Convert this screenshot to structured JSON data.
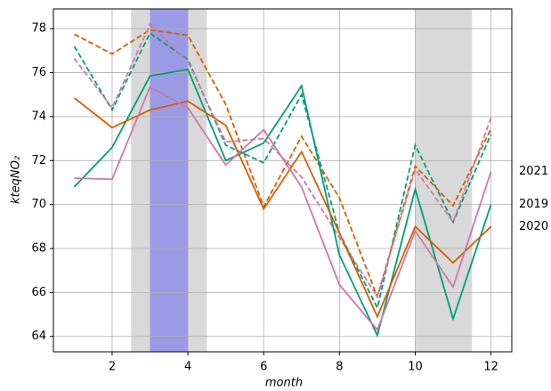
{
  "chart_data": {
    "type": "line",
    "xlabel": "month",
    "ylabel": "kteqNO₂",
    "x": [
      1,
      2,
      3,
      4,
      5,
      6,
      7,
      8,
      9,
      10,
      11,
      12
    ],
    "xlim": [
      0.45,
      12.55
    ],
    "xticks": [
      2,
      4,
      6,
      8,
      10,
      12
    ],
    "ylim": [
      63.3,
      78.9
    ],
    "yticks": [
      64,
      66,
      68,
      70,
      72,
      74,
      76,
      78
    ],
    "grid": true,
    "spans": [
      {
        "xlim": [
          2.5,
          4.5
        ],
        "color": "#d9d9d9"
      },
      {
        "xlim": [
          3,
          4
        ],
        "color": "#9a9ae6"
      },
      {
        "xlim": [
          10,
          11.5
        ],
        "color": "#d9d9d9"
      }
    ],
    "series": [
      {
        "color": "#009e73",
        "style": "dashed",
        "values": [
          77.2,
          74.3,
          77.8,
          76.6,
          72.7,
          71.9,
          75.0,
          68.7,
          65.3,
          72.7,
          69.2,
          73.2
        ]
      },
      {
        "color": "#d55e00",
        "style": "dashed",
        "values": [
          77.75,
          76.85,
          77.95,
          77.7,
          74.55,
          69.9,
          73.1,
          70.3,
          65.8,
          71.75,
          69.95,
          73.45
        ]
      },
      {
        "color": "#cc79a7",
        "style": "dashed",
        "values": [
          76.65,
          74.4,
          78.2,
          76.5,
          72.85,
          73.0,
          71.25,
          68.5,
          65.8,
          71.6,
          69.2,
          73.95
        ]
      },
      {
        "name": "2019",
        "color": "#009e73",
        "style": "solid",
        "values": [
          70.8,
          72.6,
          75.85,
          76.15,
          72.0,
          72.8,
          75.4,
          67.7,
          64.05,
          70.7,
          64.8,
          70.0
        ]
      },
      {
        "name": "2020",
        "color": "#d55e00",
        "style": "solid",
        "values": [
          74.85,
          73.5,
          74.3,
          74.7,
          73.6,
          69.8,
          72.4,
          68.7,
          64.9,
          69.0,
          67.35,
          69.0
        ]
      },
      {
        "name": "2021",
        "color": "#cc79a7",
        "style": "solid",
        "values": [
          71.2,
          71.15,
          75.35,
          74.4,
          71.8,
          73.4,
          70.8,
          66.35,
          64.3,
          68.8,
          66.25,
          71.5
        ]
      }
    ]
  }
}
